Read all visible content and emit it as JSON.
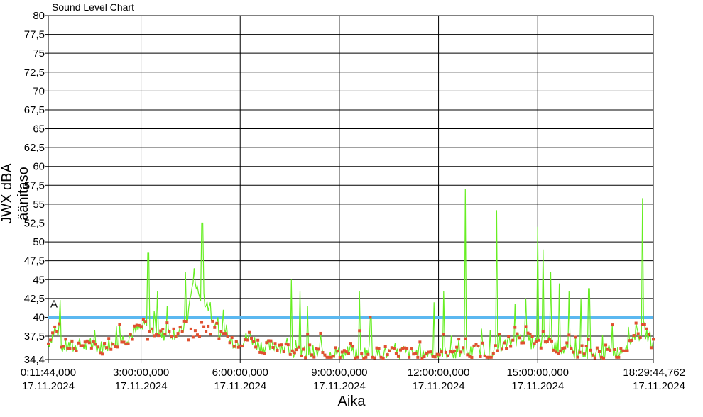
{
  "chart_data": {
    "type": "line",
    "title": "Sound Level Chart",
    "xlabel": "Aika",
    "ylabel": "JWX dBA äänitaso",
    "ylim": [
      34.4,
      80
    ],
    "y_ticks": [
      "80",
      "77,5",
      "75",
      "72,5",
      "70",
      "67,5",
      "65",
      "62,5",
      "60",
      "57,5",
      "55",
      "52,5",
      "50",
      "47,5",
      "45",
      "42,5",
      "40",
      "37,5",
      "34,4"
    ],
    "y_tick_values": [
      80,
      77.5,
      75,
      72.5,
      70,
      67.5,
      65,
      62.5,
      60,
      57.5,
      55,
      52.5,
      50,
      47.5,
      45,
      42.5,
      40,
      37.5,
      34.4
    ],
    "x_ticks": [
      {
        "time": "0:11:44,000",
        "date": "17.11.2024",
        "hours": 0.1956
      },
      {
        "time": "3:00:00,000",
        "date": "17.11.2024",
        "hours": 3
      },
      {
        "time": "6:00:00,000",
        "date": "17.11.2024",
        "hours": 6
      },
      {
        "time": "9:00:00,000",
        "date": "17.11.2024",
        "hours": 9
      },
      {
        "time": "12:00:00,000",
        "date": "17.11.2024",
        "hours": 12
      },
      {
        "time": "15:00:00,000",
        "date": "17.11.2024",
        "hours": 15
      },
      {
        "time": "18:29:44,762",
        "date": "17.11.2024",
        "hours": 18.4958
      }
    ],
    "xlim_hours": [
      0.1956,
      18.4958
    ],
    "grid": true,
    "threshold": {
      "value": 40,
      "label": "A",
      "color": "#5bb8f0"
    },
    "series": [
      {
        "color": "#66ee22",
        "marker_color": "#e05030",
        "x": [
          0.2,
          0.4,
          0.6,
          0.8,
          1.0,
          1.2,
          1.4,
          1.6,
          1.8,
          2.0,
          2.2,
          2.4,
          2.6,
          2.8,
          3.0,
          3.15,
          3.3,
          3.45,
          3.6,
          3.8,
          4.0,
          4.2,
          4.4,
          4.6,
          4.75,
          4.9,
          5.05,
          5.2,
          5.35,
          5.5,
          5.7,
          5.9,
          6.1,
          6.3,
          6.5,
          6.7,
          6.9,
          7.1,
          7.3,
          7.5,
          7.7,
          7.9,
          8.1,
          8.3,
          8.5,
          8.7,
          8.9,
          9.1,
          9.3,
          9.5,
          9.7,
          9.9,
          10.1,
          10.3,
          10.5,
          10.7,
          10.9,
          11.1,
          11.3,
          11.5,
          11.7,
          11.9,
          12.1,
          12.3,
          12.5,
          12.7,
          12.9,
          13.1,
          13.3,
          13.5,
          13.7,
          13.9,
          14.1,
          14.3,
          14.5,
          14.7,
          14.9,
          15.05,
          15.2,
          15.4,
          15.6,
          15.8,
          16.0,
          16.2,
          16.4,
          16.6,
          16.8,
          17.0,
          17.2,
          17.4,
          17.6,
          17.8,
          18.0,
          18.2,
          18.35,
          18.5
        ],
        "values": [
          36.5,
          38.5,
          36.0,
          36.2,
          36.0,
          36.4,
          36.1,
          36.3,
          36.0,
          36.5,
          36.8,
          37.0,
          37.4,
          38.0,
          38.5,
          39.0,
          38.0,
          38.5,
          37.5,
          38.0,
          38.0,
          37.8,
          40.0,
          45.0,
          43.0,
          42.5,
          41.0,
          39.5,
          38.0,
          37.5,
          37.0,
          36.8,
          37.0,
          37.5,
          36.5,
          36.2,
          36.0,
          36.5,
          36.0,
          35.5,
          35.3,
          35.2,
          35.5,
          35.2,
          35.4,
          35.0,
          35.3,
          35.1,
          35.4,
          35.0,
          35.2,
          35.5,
          35.0,
          35.3,
          35.2,
          35.0,
          35.5,
          35.1,
          35.3,
          35.0,
          35.4,
          35.2,
          35.0,
          35.5,
          35.2,
          35.0,
          35.3,
          35.5,
          35.8,
          35.2,
          35.5,
          36.0,
          36.5,
          37.0,
          37.5,
          37.0,
          36.5,
          36.5,
          37.0,
          36.5,
          36.0,
          35.8,
          35.5,
          35.3,
          35.4,
          35.2,
          35.1,
          35.3,
          35.5,
          35.2,
          36.0,
          37.0,
          37.5,
          38.5,
          37.5,
          36.5
        ]
      },
      {
        "name": "",
        "color": "#66ee22",
        "peaks": [
          {
            "x": 0.55,
            "value": 42.3
          },
          {
            "x": 2.25,
            "value": 38.8
          },
          {
            "x": 3.22,
            "value": 48.5
          },
          {
            "x": 3.5,
            "value": 43.5
          },
          {
            "x": 3.8,
            "value": 41.5
          },
          {
            "x": 4.35,
            "value": 46.0
          },
          {
            "x": 4.62,
            "value": 46.5
          },
          {
            "x": 4.85,
            "value": 52.5
          },
          {
            "x": 5.1,
            "value": 42.0
          },
          {
            "x": 5.5,
            "value": 41.0
          },
          {
            "x": 7.55,
            "value": 45.0
          },
          {
            "x": 7.8,
            "value": 43.5
          },
          {
            "x": 8.05,
            "value": 41.5
          },
          {
            "x": 9.6,
            "value": 43.5
          },
          {
            "x": 9.95,
            "value": 40.0
          },
          {
            "x": 11.85,
            "value": 42.0
          },
          {
            "x": 12.15,
            "value": 43.5
          },
          {
            "x": 12.8,
            "value": 57.0
          },
          {
            "x": 13.3,
            "value": 38.5
          },
          {
            "x": 13.75,
            "value": 54.2
          },
          {
            "x": 14.3,
            "value": 41.8
          },
          {
            "x": 14.65,
            "value": 42.5
          },
          {
            "x": 15.0,
            "value": 52.0
          },
          {
            "x": 15.15,
            "value": 49.0
          },
          {
            "x": 15.4,
            "value": 46.0
          },
          {
            "x": 15.65,
            "value": 44.5
          },
          {
            "x": 15.95,
            "value": 43.5
          },
          {
            "x": 16.3,
            "value": 42.5
          },
          {
            "x": 16.55,
            "value": 43.8
          },
          {
            "x": 17.25,
            "value": 39.0
          },
          {
            "x": 18.18,
            "value": 55.8
          }
        ]
      }
    ]
  }
}
